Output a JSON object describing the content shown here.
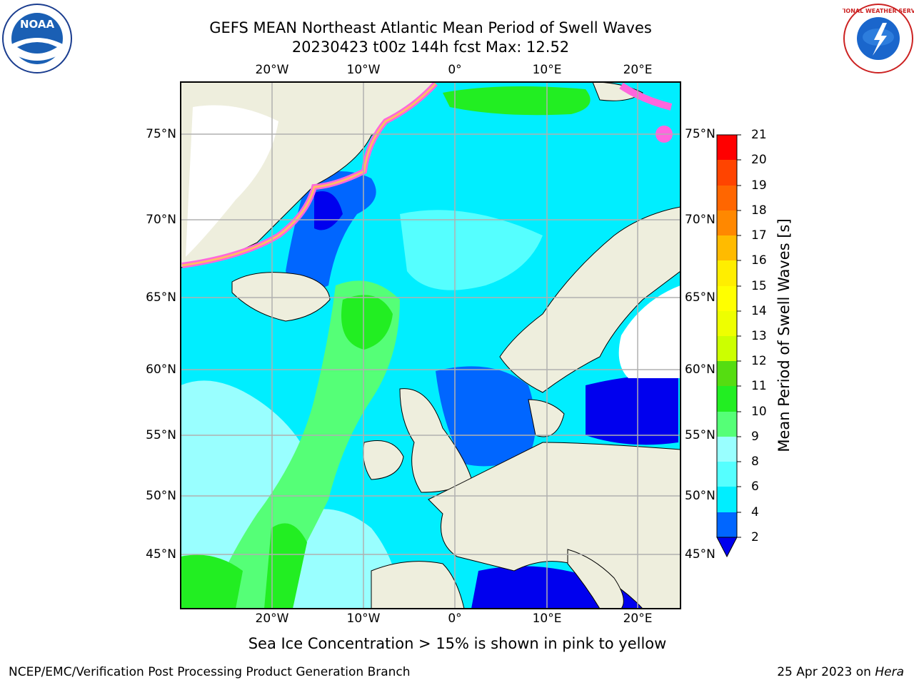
{
  "title": {
    "line1": "GEFS MEAN Northeast Atlantic Mean Period of Swell Waves",
    "line2": "20230423 t00z 144h fcst   Max: 12.52"
  },
  "map": {
    "lon_labels": [
      "20°W",
      "10°W",
      "0°",
      "10°E",
      "20°E"
    ],
    "lat_labels": [
      "75°N",
      "70°N",
      "65°N",
      "60°N",
      "55°N",
      "50°N",
      "45°N"
    ],
    "colors": {
      "ocean_dominant": "#00eeff",
      "land": "#eeeedd",
      "ice": "#ffffff",
      "gridline": "#b0b0b0"
    }
  },
  "colorbar": {
    "label": "Mean Period of Swell Waves [s]",
    "ticks": [
      "21",
      "20",
      "19",
      "18",
      "17",
      "16",
      "15",
      "14",
      "13",
      "12",
      "11",
      "10",
      "9",
      "8",
      "6",
      "4",
      "2"
    ],
    "levels": [
      {
        "min": 2,
        "max": 4,
        "color": "#0066ff"
      },
      {
        "min": 4,
        "max": 6,
        "color": "#00eeff"
      },
      {
        "min": 6,
        "max": 8,
        "color": "#55ffff"
      },
      {
        "min": 8,
        "max": 9,
        "color": "#99ffff"
      },
      {
        "min": 9,
        "max": 10,
        "color": "#55ff77"
      },
      {
        "min": 10,
        "max": 11,
        "color": "#22ee22"
      },
      {
        "min": 11,
        "max": 12,
        "color": "#55dd11"
      },
      {
        "min": 12,
        "max": 13,
        "color": "#ccff00"
      },
      {
        "min": 13,
        "max": 14,
        "color": "#eeff00"
      },
      {
        "min": 14,
        "max": 15,
        "color": "#ffff00"
      },
      {
        "min": 15,
        "max": 16,
        "color": "#ffee00"
      },
      {
        "min": 16,
        "max": 17,
        "color": "#ffbb00"
      },
      {
        "min": 17,
        "max": 18,
        "color": "#ff8800"
      },
      {
        "min": 18,
        "max": 19,
        "color": "#ff6600"
      },
      {
        "min": 19,
        "max": 20,
        "color": "#ff4400"
      },
      {
        "min": 20,
        "max": 21,
        "color": "#ff0000"
      }
    ],
    "extend_min_color": "#0000ee"
  },
  "note": "Sea Ice Concentration > 15% is shown in pink to yellow",
  "footer": {
    "left": "NCEP/EMC/Verification Post Processing Product Generation Branch",
    "date": "25 Apr 2023 on ",
    "host": "Hera"
  },
  "logos": {
    "noaa_text": "NOAA",
    "nws_text": "NATIONAL WEATHER SERVICE"
  }
}
